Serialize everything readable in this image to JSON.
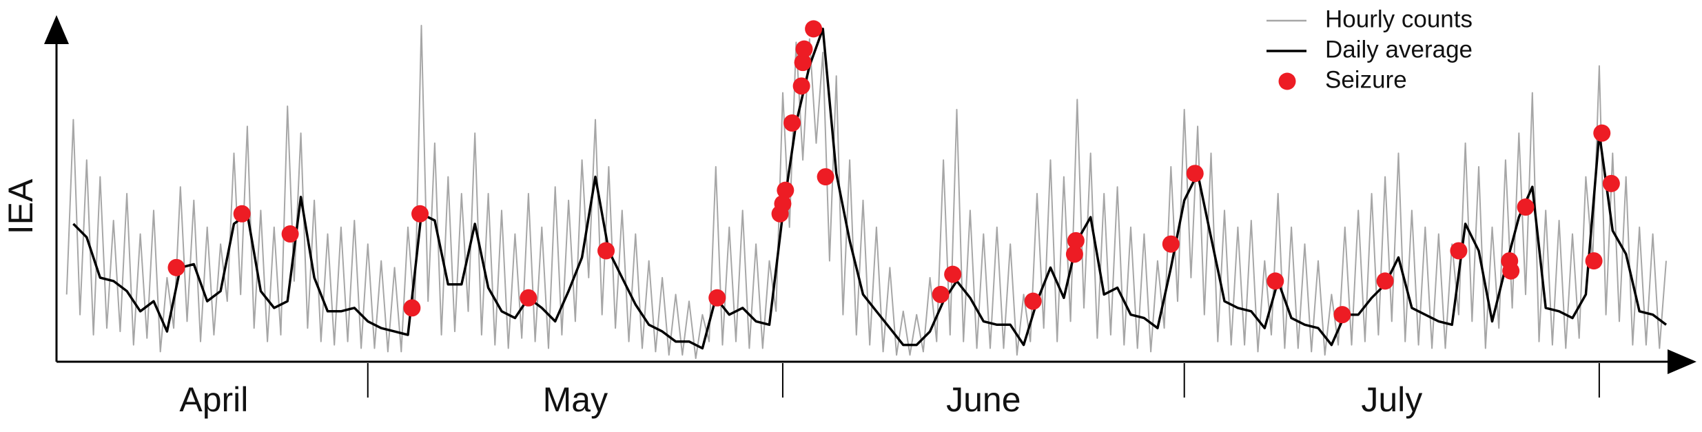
{
  "chart_data": {
    "type": "line",
    "y_label": "IEA",
    "categories": [
      "April",
      "May",
      "June",
      "July"
    ],
    "month_edges": [
      30,
      61,
      91,
      122
    ],
    "xlim": [
      7,
      127
    ],
    "ylim": [
      0,
      100
    ],
    "legend": "upper right",
    "series": [
      {
        "name": "Hourly counts",
        "color": "#a6a6a6",
        "x": [
          7.5,
          8,
          8.5,
          9,
          9.5,
          10,
          10.5,
          11,
          11.5,
          12,
          12.5,
          13,
          13.5,
          14,
          14.5,
          15,
          15.5,
          16,
          16.5,
          17,
          17.5,
          18,
          18.5,
          19,
          19.5,
          20,
          20.5,
          21,
          21.5,
          22,
          22.5,
          23,
          23.5,
          24,
          24.5,
          25,
          25.5,
          26,
          26.5,
          27,
          27.5,
          28,
          28.5,
          29,
          29.5,
          30,
          30.5,
          31,
          31.5,
          32,
          32.5,
          33,
          33.5,
          34,
          34.5,
          35,
          35.5,
          36,
          36.5,
          37,
          37.5,
          38,
          38.5,
          39,
          39.5,
          40,
          40.5,
          41,
          41.5,
          42,
          42.5,
          43,
          43.5,
          44,
          44.5,
          45,
          45.5,
          46,
          46.5,
          47,
          47.5,
          48,
          48.5,
          49,
          49.5,
          50,
          50.5,
          51,
          51.5,
          52,
          52.5,
          53,
          53.5,
          54,
          54.5,
          55,
          55.5,
          56,
          56.5,
          57,
          57.5,
          58,
          58.5,
          59,
          59.5,
          60,
          60.5,
          61,
          61.5,
          62,
          62.5,
          63,
          63.5,
          64,
          64.5,
          65,
          65.5,
          66,
          66.5,
          67,
          67.5,
          68,
          68.5,
          69,
          69.5,
          70,
          70.5,
          71,
          71.5,
          72,
          72.5,
          73,
          73.5,
          74,
          74.5,
          75,
          75.5,
          76,
          76.5,
          77,
          77.5,
          78,
          78.5,
          79,
          79.5,
          80,
          80.5,
          81,
          81.5,
          82,
          82.5,
          83,
          83.5,
          84,
          84.5,
          85,
          85.5,
          86,
          86.5,
          87,
          87.5,
          88,
          88.5,
          89,
          89.5,
          90,
          90.5,
          91,
          91.5,
          92,
          92.5,
          93,
          93.5,
          94,
          94.5,
          95,
          95.5,
          96,
          96.5,
          97,
          97.5,
          98,
          98.5,
          99,
          99.5,
          100,
          100.5,
          101,
          101.5,
          102,
          102.5,
          103,
          103.5,
          104,
          104.5,
          105,
          105.5,
          106,
          106.5,
          107,
          107.5,
          108,
          108.5,
          109,
          109.5,
          110,
          110.5,
          111,
          111.5,
          112,
          112.5,
          113,
          113.5,
          114,
          114.5,
          115,
          115.5,
          116,
          116.5,
          117,
          117.5,
          118,
          118.5,
          119,
          119.5,
          120,
          120.5,
          121,
          121.5,
          122,
          122.5,
          123,
          123.5,
          124,
          124.5,
          125,
          125.5,
          126,
          126.5,
          127
        ],
        "values": [
          20,
          72,
          14,
          60,
          8,
          55,
          10,
          42,
          9,
          50,
          5,
          38,
          7,
          45,
          3,
          25,
          10,
          52,
          12,
          48,
          6,
          40,
          8,
          35,
          18,
          62,
          20,
          70,
          10,
          45,
          6,
          40,
          8,
          76,
          24,
          68,
          10,
          48,
          6,
          38,
          5,
          40,
          6,
          42,
          4,
          35,
          4,
          30,
          3,
          28,
          3,
          40,
          14,
          100,
          18,
          65,
          8,
          55,
          9,
          50,
          15,
          68,
          8,
          50,
          5,
          45,
          4,
          38,
          7,
          50,
          6,
          40,
          4,
          52,
          8,
          48,
          12,
          60,
          25,
          72,
          14,
          58,
          10,
          45,
          6,
          38,
          4,
          30,
          3,
          25,
          2,
          20,
          2,
          18,
          1,
          14,
          6,
          58,
          5,
          40,
          6,
          45,
          4,
          35,
          4,
          30,
          15,
          80,
          40,
          95,
          60,
          96,
          65,
          92,
          30,
          85,
          14,
          60,
          8,
          48,
          5,
          40,
          3,
          28,
          2,
          15,
          2,
          14,
          3,
          25,
          6,
          60,
          8,
          75,
          6,
          45,
          4,
          38,
          4,
          40,
          4,
          35,
          2,
          20,
          6,
          50,
          10,
          60,
          6,
          55,
          12,
          78,
          16,
          62,
          7,
          50,
          8,
          52,
          5,
          40,
          4,
          38,
          3,
          30,
          10,
          58,
          18,
          75,
          25,
          70,
          14,
          62,
          6,
          45,
          5,
          40,
          5,
          42,
          3,
          30,
          8,
          50,
          4,
          40,
          4,
          35,
          3,
          30,
          2,
          20,
          5,
          40,
          5,
          45,
          6,
          50,
          8,
          55,
          12,
          62,
          6,
          45,
          5,
          40,
          4,
          38,
          4,
          35,
          14,
          65,
          12,
          58,
          4,
          40,
          10,
          60,
          16,
          68,
          20,
          80,
          6,
          45,
          5,
          42,
          4,
          38,
          7,
          55,
          30,
          88,
          14,
          62,
          12,
          55,
          5,
          40,
          5,
          38,
          4,
          30
        ]
      },
      {
        "name": "Daily average",
        "color": "#000000",
        "x": [
          8,
          9,
          10,
          11,
          12,
          13,
          14,
          15,
          16,
          17,
          18,
          19,
          20,
          21,
          22,
          23,
          24,
          25,
          26,
          27,
          28,
          29,
          30,
          31,
          32,
          33,
          34,
          35,
          36,
          37,
          38,
          39,
          40,
          41,
          42,
          43,
          44,
          45,
          46,
          47,
          48,
          49,
          50,
          51,
          52,
          53,
          54,
          55,
          56,
          57,
          58,
          59,
          60,
          61,
          62,
          63,
          64,
          65,
          66,
          67,
          68,
          69,
          70,
          71,
          72,
          73,
          74,
          75,
          76,
          77,
          78,
          79,
          80,
          81,
          82,
          83,
          84,
          85,
          86,
          87,
          88,
          89,
          90,
          91,
          92,
          93,
          94,
          95,
          96,
          97,
          98,
          99,
          100,
          101,
          102,
          103,
          104,
          105,
          106,
          107,
          108,
          109,
          110,
          111,
          112,
          113,
          114,
          115,
          116,
          117,
          118,
          119,
          120,
          121,
          122,
          123,
          124,
          125,
          126,
          127
        ],
        "values": [
          41,
          37,
          25,
          24,
          21,
          15,
          18,
          9,
          28,
          29,
          18,
          21,
          41,
          44,
          21,
          16,
          18,
          49,
          25,
          15,
          15,
          16,
          12,
          10,
          9,
          8,
          44,
          42,
          23,
          23,
          41,
          22,
          15,
          13,
          19,
          16,
          12,
          21,
          31,
          55,
          33,
          25,
          17,
          11,
          9,
          6,
          6,
          4,
          19,
          14,
          16,
          12,
          11,
          44,
          71,
          88,
          99,
          56,
          36,
          20,
          15,
          10,
          5,
          5,
          9,
          18,
          24,
          19,
          12,
          11,
          11,
          5,
          18,
          28,
          19,
          36,
          43,
          20,
          22,
          14,
          13,
          10,
          28,
          48,
          56,
          37,
          18,
          16,
          15,
          10,
          24,
          13,
          11,
          10,
          5,
          14,
          14,
          19,
          23,
          31,
          16,
          14,
          12,
          11,
          41,
          33,
          12,
          28,
          43,
          52,
          16,
          15,
          13,
          20,
          68,
          39,
          32,
          15,
          14,
          11
        ]
      },
      {
        "name": "Seizure",
        "color": "#ed1c24",
        "type": "scatter",
        "x": [
          15.7,
          20.6,
          24.2,
          33.3,
          33.9,
          42.0,
          47.8,
          56.1,
          60.8,
          61.0,
          61.2,
          61.7,
          62.4,
          62.5,
          62.6,
          63.3,
          64.2,
          72.8,
          73.7,
          79.7,
          82.8,
          82.9,
          90.0,
          91.8,
          97.8,
          102.8,
          106.0,
          111.5,
          115.3,
          115.4,
          116.5,
          121.6,
          122.2,
          122.9
        ],
        "values": [
          28,
          44,
          38,
          16,
          44,
          19,
          33,
          19,
          44,
          47,
          51,
          71,
          82,
          89,
          93,
          99,
          55,
          20,
          26,
          18,
          32,
          36,
          35,
          56,
          24,
          14,
          24,
          33,
          30,
          27,
          46,
          30,
          68,
          53
        ]
      }
    ]
  }
}
